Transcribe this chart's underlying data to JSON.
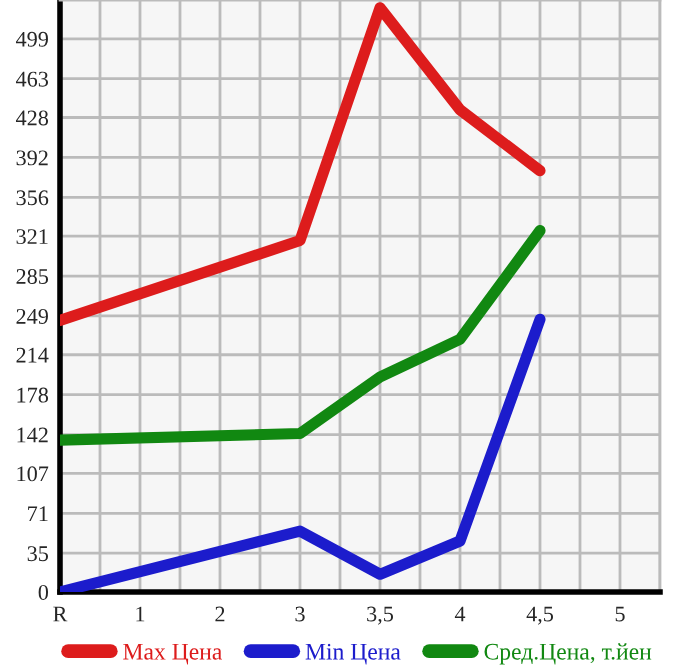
{
  "chart_data": {
    "type": "line",
    "categories": [
      "R",
      "1",
      "2",
      "3",
      "3,5",
      "4",
      "4,5",
      "5"
    ],
    "series": [
      {
        "name": "Max Цена",
        "color": "#dd1c1c",
        "values": [
          245,
          null,
          null,
          317,
          527,
          435,
          380,
          null
        ]
      },
      {
        "name": "Min Цена",
        "color": "#1c1ccc",
        "values": [
          0,
          null,
          null,
          55,
          16,
          46,
          246,
          null
        ]
      },
      {
        "name": "Сред.Цена, т.йен",
        "color": "#118811",
        "values": [
          137,
          null,
          null,
          143,
          194,
          228,
          326,
          null
        ]
      }
    ],
    "ylim": [
      0,
      534
    ],
    "yticks": [
      0,
      35,
      71,
      107,
      142,
      178,
      214,
      249,
      285,
      321,
      356,
      392,
      428,
      463,
      499
    ],
    "grid": true,
    "legend": "bottom",
    "marker": "none",
    "line_style": "solid"
  }
}
